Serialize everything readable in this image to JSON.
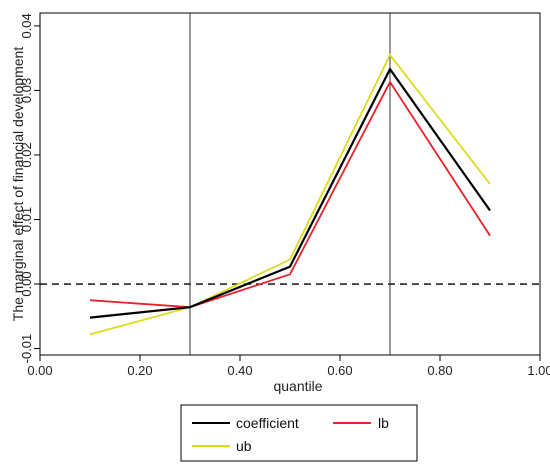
{
  "chart_data": {
    "type": "line",
    "xlabel": "quantile",
    "ylabel": "The marginal effect of financial development",
    "xlim": [
      0.0,
      1.0
    ],
    "ylim": [
      -0.011,
      0.042
    ],
    "x_ticks": [
      {
        "value": 0.0,
        "label": "0.00"
      },
      {
        "value": 0.2,
        "label": "0.20"
      },
      {
        "value": 0.4,
        "label": "0.40"
      },
      {
        "value": 0.6,
        "label": "0.60"
      },
      {
        "value": 0.8,
        "label": "0.80"
      },
      {
        "value": 1.0,
        "label": "1.00"
      }
    ],
    "y_ticks": [
      {
        "value": -0.01,
        "label": "-0.01"
      },
      {
        "value": 0.0,
        "label": "0.00"
      },
      {
        "value": 0.01,
        "label": "0.01"
      },
      {
        "value": 0.02,
        "label": "0.02"
      },
      {
        "value": 0.03,
        "label": "0.03"
      },
      {
        "value": 0.04,
        "label": "0.04"
      }
    ],
    "x": [
      0.1,
      0.3,
      0.5,
      0.7,
      0.9
    ],
    "series": [
      {
        "name": "coefficient",
        "color": "#000000",
        "values": [
          -0.0052,
          -0.0036,
          0.0027,
          0.0333,
          0.0114
        ]
      },
      {
        "name": "lb",
        "color": "#e8222a",
        "values": [
          -0.0025,
          -0.0036,
          0.0015,
          0.0313,
          0.0075
        ]
      },
      {
        "name": "ub",
        "color": "#dcdc1e",
        "values": [
          -0.0078,
          -0.0036,
          0.0038,
          0.0355,
          0.0155
        ]
      }
    ],
    "reference_lines": {
      "horizontal_dashed_y": 0.0,
      "vertical_x": [
        0.3,
        0.7
      ]
    },
    "grid": false,
    "legend_position": "bottom"
  }
}
